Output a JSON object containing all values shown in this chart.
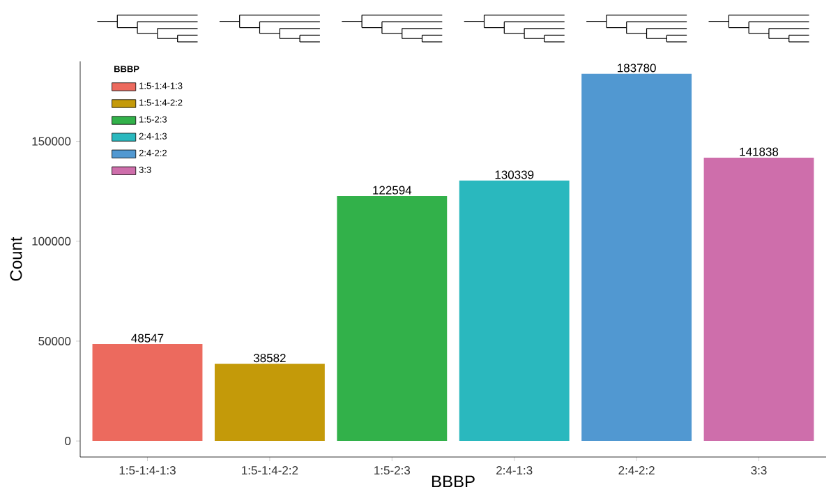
{
  "chart_data": {
    "type": "bar",
    "xlabel": "BBBP",
    "ylabel": "Count",
    "legend_title": "BBBP",
    "categories": [
      "1:5-1:4-1:3",
      "1:5-1:4-2:2",
      "1:5-2:3",
      "2:4-1:3",
      "2:4-2:2",
      "3:3"
    ],
    "series": [
      {
        "name": "1:5-1:4-1:3",
        "color": "#ec6a5e",
        "values": [
          48547,
          null,
          null,
          null,
          null,
          null
        ]
      },
      {
        "name": "1:5-1:4-2:2",
        "color": "#c49a09",
        "values": [
          null,
          38582,
          null,
          null,
          null,
          null
        ]
      },
      {
        "name": "1:5-2:3",
        "color": "#32b14a",
        "values": [
          null,
          null,
          122594,
          null,
          null,
          null
        ]
      },
      {
        "name": "2:4-1:3",
        "color": "#2ab8be",
        "values": [
          null,
          null,
          null,
          130339,
          null,
          null
        ]
      },
      {
        "name": "2:4-2:2",
        "color": "#5198d1",
        "values": [
          null,
          null,
          null,
          null,
          183780,
          null
        ]
      },
      {
        "name": "3:3",
        "color": "#ce6eab",
        "values": [
          null,
          null,
          null,
          null,
          null,
          141838
        ]
      }
    ],
    "ylim": [
      -8000,
      190000
    ],
    "yticks": [
      0,
      50000,
      100000,
      150000
    ],
    "data_labels": true,
    "legend": "top left",
    "grid": false
  }
}
